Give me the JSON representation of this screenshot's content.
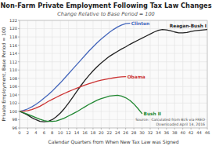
{
  "chart_data": {
    "type": "line",
    "title": "Non-Farm Private Employment Following Tax Law Changes",
    "subtitle": "Change Relative to Base Period = 100",
    "xlabel": "Calendar Quarters from When New Tax Law was Signed",
    "ylabel": "Private Employment, Base Period = 100",
    "annotations": [
      "Source:  Calculated from BLS via FRED\nDownloaded April 14, 2016"
    ],
    "xlim": [
      0,
      46
    ],
    "ylim": [
      96,
      122
    ],
    "xticks": [
      0,
      2,
      4,
      6,
      8,
      10,
      12,
      14,
      16,
      18,
      20,
      22,
      24,
      26,
      28,
      30,
      32,
      34,
      36,
      38,
      40,
      42,
      44,
      46
    ],
    "yticks": [
      96,
      98,
      100,
      102,
      104,
      106,
      108,
      110,
      112,
      114,
      116,
      118,
      120,
      122
    ],
    "grid": true,
    "series": [
      {
        "name": "Clinton",
        "color": "#4466bb",
        "x": [
          0,
          1,
          2,
          3,
          4,
          5,
          6,
          7,
          8,
          9,
          10,
          11,
          12,
          13,
          14,
          15,
          16,
          17,
          18,
          19,
          20,
          21,
          22,
          23,
          24,
          25,
          26,
          27
        ],
        "values": [
          100,
          100.25,
          100.6,
          101.1,
          101.7,
          102.4,
          103.2,
          104.0,
          104.9,
          105.9,
          106.9,
          108.0,
          109.1,
          110.2,
          111.3,
          112.4,
          113.5,
          114.6,
          115.6,
          116.6,
          117.5,
          118.3,
          119.1,
          119.8,
          120.4,
          120.9,
          121.2,
          121.3
        ]
      },
      {
        "name": "Reagan-Bush I",
        "color": "#222222",
        "x": [
          0,
          1,
          2,
          3,
          4,
          5,
          6,
          7,
          8,
          9,
          10,
          11,
          12,
          13,
          14,
          15,
          16,
          17,
          18,
          19,
          20,
          21,
          22,
          23,
          24,
          25,
          26,
          27,
          28,
          29,
          30,
          31,
          32,
          33,
          34,
          35,
          36,
          37,
          38,
          39,
          40,
          41,
          42,
          43,
          44,
          45,
          46
        ],
        "values": [
          100,
          99.6,
          99.1,
          98.5,
          98.0,
          97.6,
          97.5,
          97.6,
          98.0,
          98.7,
          99.6,
          100.7,
          102.0,
          103.4,
          104.8,
          106.2,
          107.5,
          108.7,
          109.8,
          110.8,
          111.7,
          112.5,
          113.3,
          113.9,
          114.5,
          115.1,
          115.6,
          116.2,
          116.7,
          117.2,
          117.7,
          118.2,
          118.7,
          119.2,
          119.6,
          119.8,
          119.7,
          119.5,
          119.2,
          119.0,
          119.0,
          119.1,
          119.3,
          119.5,
          119.6,
          119.7,
          119.8
        ]
      },
      {
        "name": "Obama",
        "color": "#cc3333",
        "x": [
          0,
          1,
          2,
          3,
          4,
          5,
          6,
          7,
          8,
          9,
          10,
          11,
          12,
          13,
          14,
          15,
          16,
          17,
          18,
          19,
          20,
          21,
          22,
          23,
          24,
          25,
          26
        ],
        "values": [
          100,
          100.05,
          100.2,
          100.45,
          100.8,
          101.25,
          101.8,
          102.4,
          102.9,
          103.4,
          103.9,
          104.35,
          104.8,
          105.2,
          105.6,
          106.0,
          106.35,
          106.7,
          107.0,
          107.3,
          107.55,
          107.75,
          107.95,
          108.1,
          108.25,
          108.35,
          108.4
        ]
      },
      {
        "name": "Bush II",
        "color": "#228833",
        "x": [
          0,
          1,
          2,
          3,
          4,
          5,
          6,
          7,
          8,
          9,
          10,
          11,
          12,
          13,
          14,
          15,
          16,
          17,
          18,
          19,
          20,
          21,
          22,
          23,
          24,
          25,
          26,
          27,
          28,
          29,
          30
        ],
        "values": [
          100,
          99.7,
          99.3,
          98.9,
          98.5,
          98.1,
          97.8,
          97.6,
          97.6,
          97.7,
          98.0,
          98.4,
          98.9,
          99.4,
          99.9,
          100.5,
          101.1,
          101.7,
          102.2,
          102.7,
          103.1,
          103.4,
          103.7,
          103.8,
          103.9,
          103.7,
          103.3,
          102.7,
          101.8,
          100.7,
          99.5
        ]
      }
    ]
  }
}
